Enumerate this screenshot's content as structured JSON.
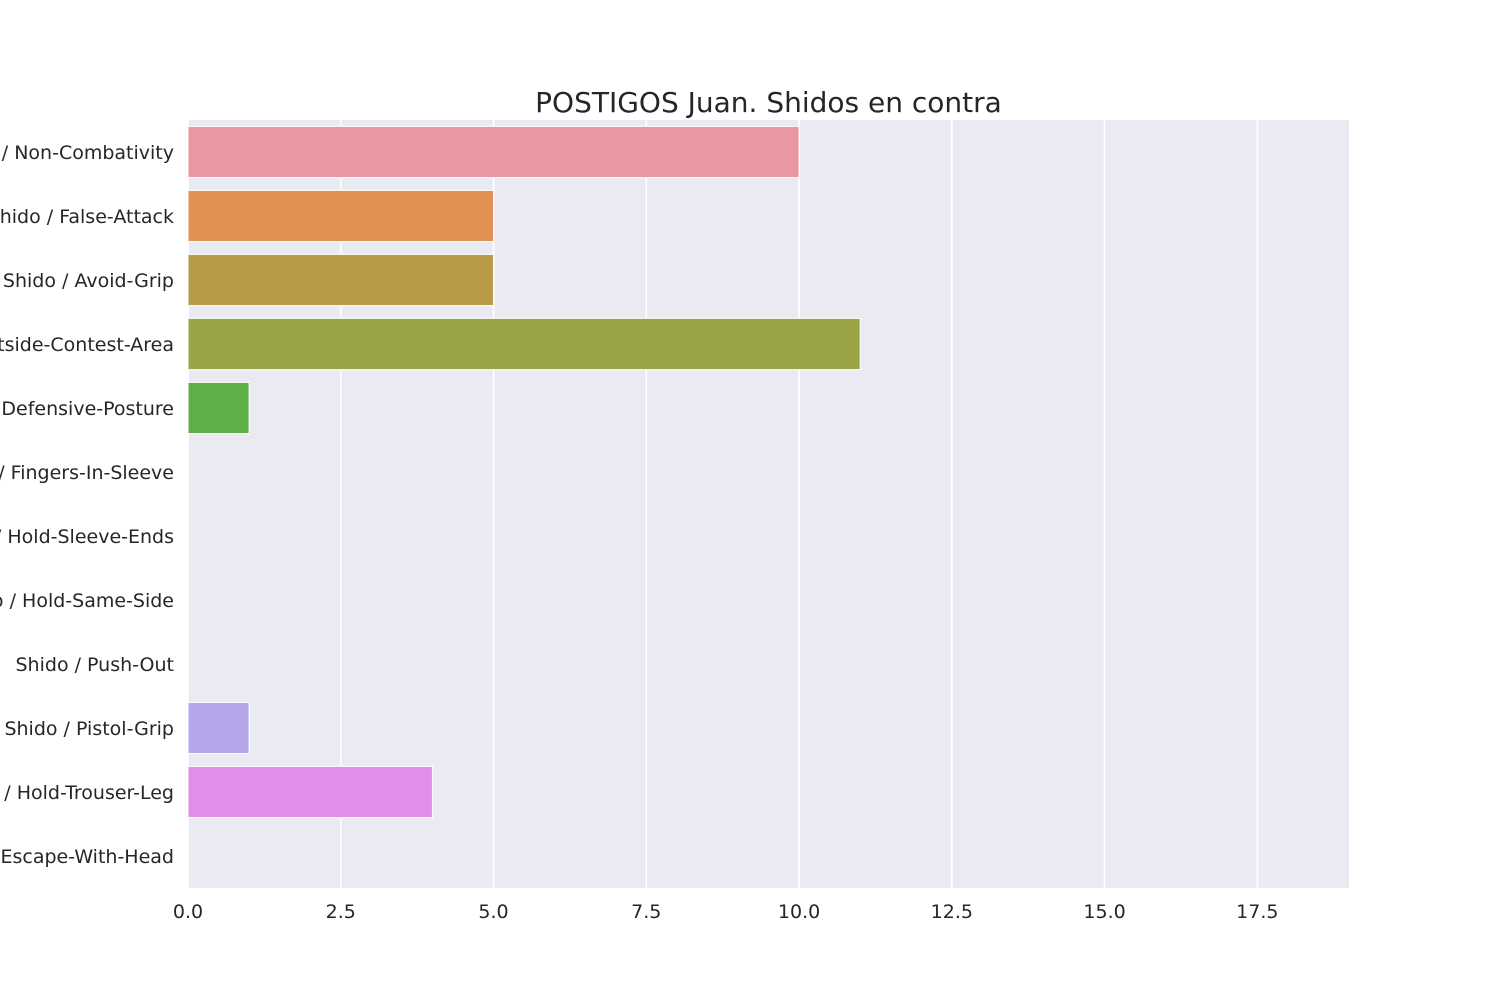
{
  "chart_data": {
    "type": "bar",
    "orientation": "horizontal",
    "title": "POSTIGOS Juan. Shidos en contra",
    "xlabel": "",
    "ylabel": "",
    "xlim": [
      0,
      19
    ],
    "x_ticks": [
      "0.0",
      "2.5",
      "5.0",
      "7.5",
      "10.0",
      "12.5",
      "15.0",
      "17.5"
    ],
    "grid": "on",
    "legend": "none",
    "categories": [
      "Shido / Non-Combativity",
      "Shido / False-Attack",
      "Shido / Avoid-Grip",
      "Shido / Outside-Contest-Area",
      "Shido / Defensive-Posture",
      "Shido / Fingers-In-Sleeve",
      "Shido / Hold-Sleeve-Ends",
      "Shido / Hold-Same-Side",
      "Shido / Push-Out",
      "Shido / Pistol-Grip",
      "Shido / Hold-Trouser-Leg",
      "Shido / Escape-With-Head"
    ],
    "values": [
      10,
      5,
      5,
      11,
      1,
      0,
      0,
      0,
      0,
      1,
      4,
      0
    ],
    "colors": [
      "#ea96a3",
      "#e19153",
      "#b89b49",
      "#9aa447",
      "#60ae47",
      "#4aad7f",
      "#4aacaa",
      "#4ea9d3",
      "#8ea8e8",
      "#b5a6ec",
      "#df8fe7",
      "#ec91c3"
    ]
  },
  "style": {
    "background": "#ffffff",
    "plot_background": "#eaeaf2",
    "grid_color": "#ffffff",
    "text_color": "#262626"
  }
}
